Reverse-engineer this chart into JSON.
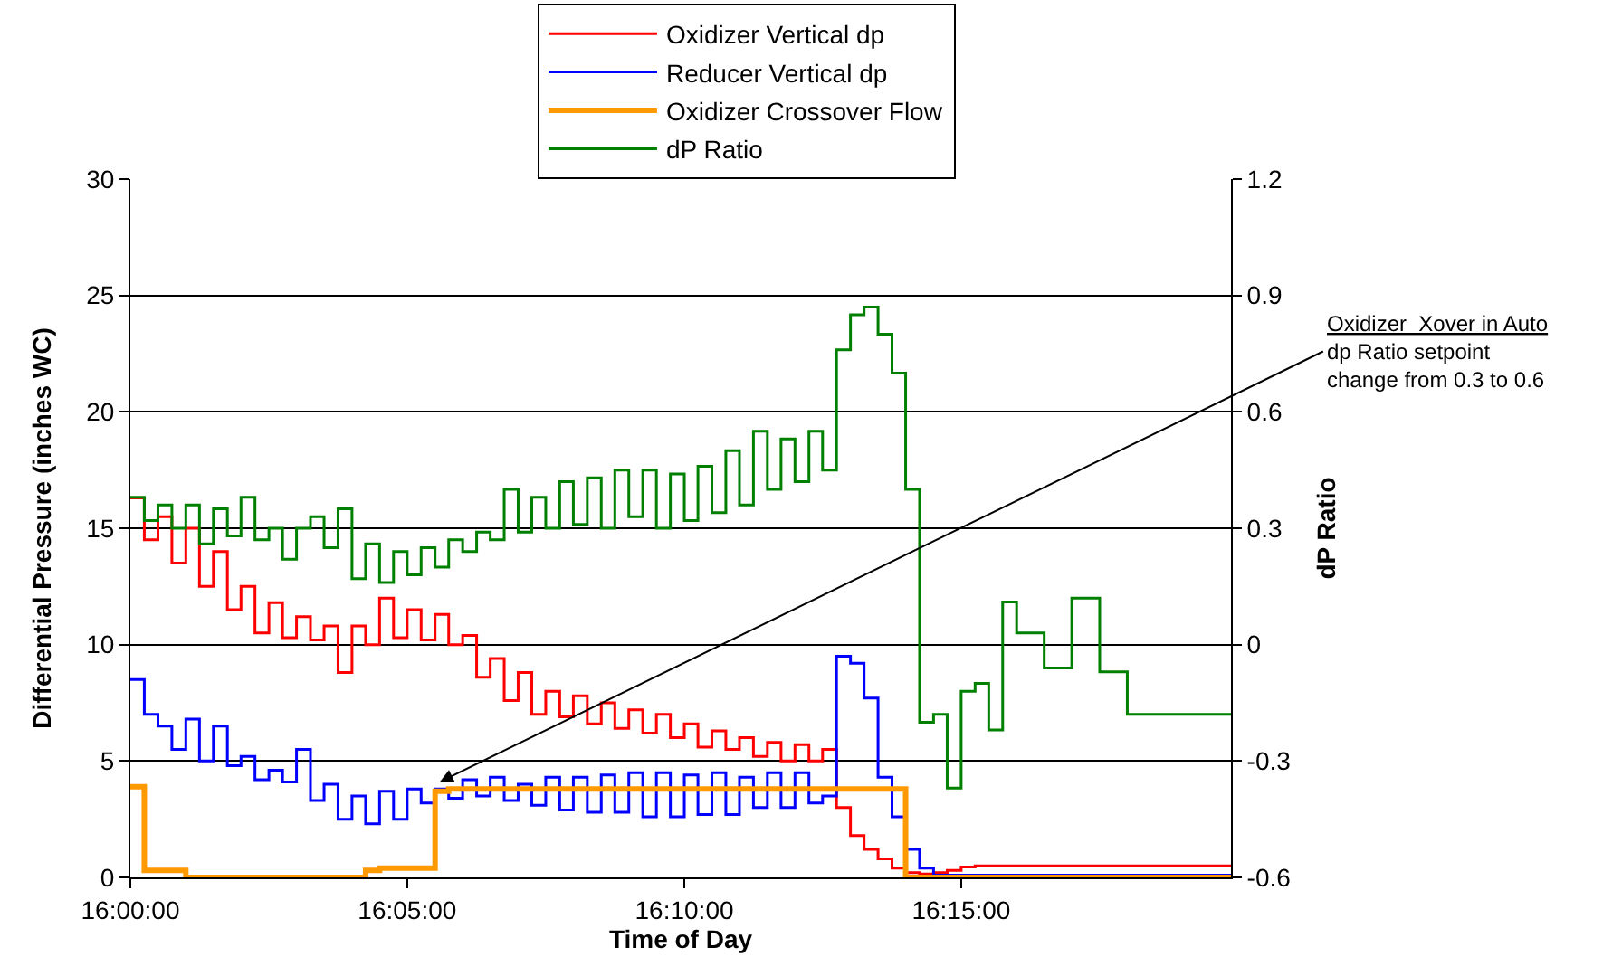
{
  "chart_data": {
    "type": "step",
    "xlabel": "Time of Day",
    "ylabel": "Differential Pressure (inches WC)",
    "y2label": "dP Ratio",
    "x": [
      16.0,
      16.0042,
      16.0083,
      16.0125,
      16.0167,
      16.0208,
      16.025,
      16.0292,
      16.0333,
      16.0375,
      16.0417,
      16.0458,
      16.05,
      16.0542,
      16.0583,
      16.0625,
      16.0667,
      16.0708,
      16.075,
      16.0792,
      16.0833,
      16.0875,
      16.0917,
      16.0958,
      16.1,
      16.1042,
      16.1083,
      16.1125,
      16.1167,
      16.1208,
      16.125,
      16.1292,
      16.1333,
      16.1375,
      16.1417,
      16.1458,
      16.15,
      16.1542,
      16.1583,
      16.1625,
      16.1667,
      16.1708,
      16.175,
      16.1792,
      16.1833,
      16.1875,
      16.1917,
      16.1958,
      16.2,
      16.2042,
      16.2083,
      16.2125,
      16.2167,
      16.2208,
      16.225,
      16.2292,
      16.2333,
      16.2375,
      16.2417,
      16.2458,
      16.25,
      16.2542,
      16.2583,
      16.2625,
      16.2667,
      16.2708,
      16.275,
      16.2792,
      16.2833,
      16.2875,
      16.2917,
      16.2958,
      16.3,
      16.3042,
      16.3083,
      16.3125,
      16.3167,
      16.3208,
      16.325,
      16.3292,
      16.3312
    ],
    "series": [
      {
        "name": "Oxidizer Vertical dp",
        "color": "#ff0000",
        "values": [
          16.3,
          14.5,
          15.5,
          13.5,
          15,
          12.5,
          14,
          11.5,
          12.5,
          10.5,
          11.8,
          10.3,
          11.2,
          10.2,
          10.8,
          8.8,
          10.8,
          10,
          12,
          10.3,
          11.5,
          10.2,
          11.3,
          10,
          10.4,
          8.6,
          9.4,
          7.6,
          8.8,
          7,
          8,
          6.9,
          7.8,
          6.6,
          7.5,
          6.4,
          7.2,
          6.2,
          7,
          6,
          6.6,
          5.6,
          6.3,
          5.5,
          6,
          5.2,
          5.8,
          5,
          5.7,
          5,
          5.5,
          3,
          1.8,
          1.2,
          0.8,
          0.4,
          0.2,
          0.15,
          0.2,
          0.3,
          0.45,
          0.5,
          0.5,
          0.5,
          0.5,
          0.5,
          0.5,
          0.5,
          0.5,
          0.5,
          0.5,
          0.5,
          0.5,
          0.5,
          0.5,
          0.5,
          0.5,
          0.5,
          0.5,
          0.5,
          0.5
        ]
      },
      {
        "name": "Reducer Vertical dp",
        "color": "#0000ff",
        "values": [
          8.5,
          7,
          6.5,
          5.5,
          6.8,
          5,
          6.5,
          4.8,
          5.2,
          4.2,
          4.6,
          4.1,
          5.5,
          3.3,
          4,
          2.5,
          3.5,
          2.3,
          3.7,
          2.5,
          3.8,
          3.2,
          3.8,
          3.4,
          4.2,
          3.5,
          4.3,
          3.3,
          4,
          3.1,
          4.3,
          2.9,
          4.3,
          2.8,
          4.4,
          2.8,
          4.5,
          2.6,
          4.5,
          2.6,
          4.4,
          2.7,
          4.5,
          2.7,
          4.3,
          3,
          4.5,
          3,
          4.5,
          3.2,
          3.5,
          9.5,
          9.2,
          7.7,
          4.3,
          2.6,
          1.2,
          0.4,
          0.1,
          0.1,
          0.1,
          0.1,
          0.1,
          0.1,
          0.1,
          0.1,
          0.1,
          0.1,
          0.1,
          0.1,
          0.1,
          0.1,
          0.1,
          0.1,
          0.1,
          0.1,
          0.1,
          0.1,
          0.1,
          0.1,
          0.1
        ]
      },
      {
        "name": "Oxidizer Crossover Flow",
        "color": "#ff9900",
        "values": [
          3.9,
          0.3,
          0.3,
          0.3,
          0,
          0,
          0,
          0,
          0,
          0,
          0,
          0,
          0,
          0,
          0,
          0,
          0,
          0.3,
          0.4,
          0.4,
          0.4,
          0.4,
          3.7,
          3.8,
          3.8,
          3.8,
          3.8,
          3.8,
          3.8,
          3.8,
          3.8,
          3.8,
          3.8,
          3.8,
          3.8,
          3.8,
          3.8,
          3.8,
          3.8,
          3.8,
          3.8,
          3.8,
          3.8,
          3.8,
          3.8,
          3.8,
          3.8,
          3.8,
          3.8,
          3.8,
          3.8,
          3.8,
          3.8,
          3.8,
          3.8,
          3.8,
          0,
          0,
          0,
          0,
          0,
          0,
          0,
          0,
          0,
          0,
          0,
          0,
          0,
          0,
          0,
          0,
          0,
          0,
          0,
          0,
          0,
          0,
          0,
          0,
          0
        ]
      },
      {
        "name": "dP Ratio",
        "color": "#008000",
        "axis": "y2",
        "values": [
          0.38,
          0.32,
          0.36,
          0.3,
          0.36,
          0.26,
          0.35,
          0.28,
          0.38,
          0.27,
          0.3,
          0.22,
          0.3,
          0.33,
          0.25,
          0.35,
          0.17,
          0.26,
          0.16,
          0.24,
          0.18,
          0.25,
          0.2,
          0.27,
          0.24,
          0.29,
          0.27,
          0.4,
          0.29,
          0.38,
          0.3,
          0.42,
          0.31,
          0.43,
          0.3,
          0.45,
          0.33,
          0.45,
          0.3,
          0.44,
          0.32,
          0.46,
          0.34,
          0.5,
          0.36,
          0.55,
          0.4,
          0.53,
          0.42,
          0.55,
          0.45,
          0.76,
          0.85,
          0.87,
          0.8,
          0.7,
          0.4,
          -0.2,
          -0.18,
          -0.37,
          -0.12,
          -0.1,
          -0.22,
          0.11,
          0.03,
          0.03,
          -0.06,
          -0.06,
          0.12,
          0.12,
          -0.07,
          -0.07,
          -0.18,
          -0.18,
          -0.18,
          -0.18,
          -0.18,
          -0.18,
          -0.18,
          -0.18,
          -0.18
        ]
      }
    ],
    "xlim": [
      16.0,
      16.3312
    ],
    "xticks": [
      {
        "value": 16.0,
        "label": "16:00:00"
      },
      {
        "value": 16.0833,
        "label": "16:05:00"
      },
      {
        "value": 16.1667,
        "label": "16:10:00"
      },
      {
        "value": 16.25,
        "label": "16:15:00"
      }
    ],
    "ylim": [
      0,
      30
    ],
    "yticks": [
      0,
      5,
      10,
      15,
      20,
      25,
      30
    ],
    "y2lim": [
      -0.6,
      1.2
    ],
    "y2ticks": [
      -0.6,
      -0.3,
      0,
      0.3,
      0.6,
      0.9,
      1.2
    ],
    "annotations": [
      {
        "text": "Oxidizer  Xover in Auto\ndp Ratio setpoint\nchange from 0.3 to 0.6",
        "x": 16.0931,
        "y": 4.1
      }
    ],
    "grid": "y",
    "legend": "top",
    "marker": "none",
    "line_style": "solid"
  }
}
